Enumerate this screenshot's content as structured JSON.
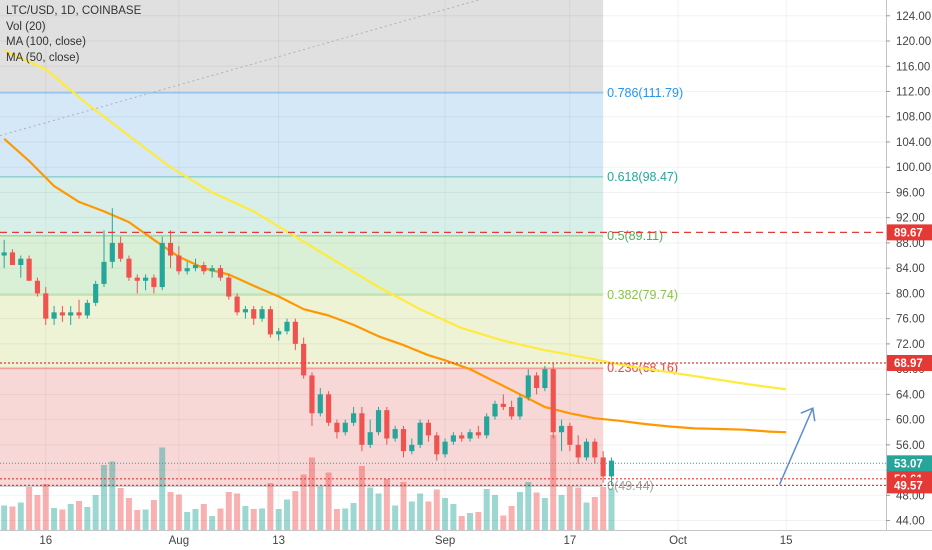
{
  "title": "LTC/USD, 1D, COINBASE",
  "indicators": [
    "Vol (20)",
    "MA (100, close)",
    "MA (50, close)"
  ],
  "colors": {
    "up": "#26a69a",
    "down": "#ef5350",
    "ma50": "#ff9800",
    "ma100": "#ffeb3b",
    "fib_line": "#42a5f5",
    "fib_0786": "#2196f3",
    "fib_0618": "#26a69a",
    "fib_05": "#4caf50",
    "fib_0382": "#8bc34a",
    "fib_0236": "#f44336",
    "level": "#e53935",
    "last_price": "#26a69a",
    "arrow": "#5b8dd6"
  },
  "chart_data": {
    "type": "candlestick",
    "title": "LTC/USD, 1D, COINBASE",
    "symbol": "LTC/USD",
    "interval": "1D",
    "exchange": "COINBASE",
    "y_axis": {
      "range": [
        42.5,
        126.5
      ],
      "ticks": [
        "44.00",
        "48.00",
        "52.00",
        "56.00",
        "60.00",
        "64.00",
        "68.00",
        "72.00",
        "76.00",
        "80.00",
        "84.00",
        "88.00",
        "92.00",
        "96.00",
        "100.00",
        "104.00",
        "108.00",
        "112.00",
        "116.00",
        "120.00",
        "124.00"
      ]
    },
    "x_axis": {
      "ticks": [
        {
          "label": "16",
          "index": 5
        },
        {
          "label": "Aug",
          "index": 21
        },
        {
          "label": "13",
          "index": 33
        },
        {
          "label": "Sep",
          "index": 53
        },
        {
          "label": "17",
          "index": 68
        },
        {
          "label": "Oct",
          "index": 81
        },
        {
          "label": "15",
          "index": 94
        }
      ],
      "range": [
        -0.5,
        106
      ]
    },
    "fibonacci": {
      "end_index": 72,
      "levels": [
        {
          "label": "0.786(111.79)",
          "value": 111.79,
          "color": "#2196f3"
        },
        {
          "label": "0.618(98.47)",
          "value": 98.47,
          "color": "#26a69a"
        },
        {
          "label": "0.5(89.11)",
          "value": 89.11,
          "color": "#4caf50"
        },
        {
          "label": "0.382(79.74)",
          "value": 79.74,
          "color": "#8bc34a"
        },
        {
          "label": "0.236(68.16)",
          "value": 68.16,
          "color": "#f44336"
        },
        {
          "label": "0(49.44)",
          "value": 49.44,
          "color": "#9e9e9e"
        }
      ],
      "bands": [
        {
          "from": 111.79,
          "to": 126.5,
          "color": "#e0e0e0"
        },
        {
          "from": 98.47,
          "to": 111.79,
          "color": "#d4e8f7"
        },
        {
          "from": 89.11,
          "to": 98.47,
          "color": "#d8efe9"
        },
        {
          "from": 79.74,
          "to": 89.11,
          "color": "#d9f0d7"
        },
        {
          "from": 68.16,
          "to": 79.74,
          "color": "#eef3d6"
        },
        {
          "from": 49.44,
          "to": 68.16,
          "color": "#f8d7d7"
        }
      ]
    },
    "price_levels": [
      {
        "label": "89.67",
        "value": 89.67,
        "style": "dashed"
      },
      {
        "label": "68.97",
        "value": 68.97,
        "style": "dotted"
      },
      {
        "label": "50.61",
        "value": 50.61,
        "style": "dotted"
      },
      {
        "label": "49.57",
        "value": 49.57,
        "style": "dotted"
      }
    ],
    "last_price": {
      "label": "53.07",
      "value": 53.07
    },
    "ma100": [
      [
        0,
        118.5
      ],
      [
        5,
        115.5
      ],
      [
        10,
        110
      ],
      [
        15,
        105
      ],
      [
        20,
        100
      ],
      [
        25,
        96
      ],
      [
        30,
        93
      ],
      [
        35,
        89
      ],
      [
        40,
        85
      ],
      [
        45,
        81
      ],
      [
        50,
        77.5
      ],
      [
        55,
        74.5
      ],
      [
        60,
        72.5
      ],
      [
        65,
        71
      ],
      [
        70,
        69.8
      ],
      [
        75,
        68.5
      ],
      [
        80,
        67.5
      ],
      [
        85,
        66.5
      ],
      [
        90,
        65.5
      ],
      [
        94,
        64.8
      ]
    ],
    "ma50": [
      [
        0,
        104.5
      ],
      [
        3,
        101
      ],
      [
        6,
        97
      ],
      [
        9,
        94.5
      ],
      [
        12,
        93
      ],
      [
        15,
        91.3
      ],
      [
        18,
        88.5
      ],
      [
        21,
        85.8
      ],
      [
        24,
        84
      ],
      [
        27,
        83
      ],
      [
        30,
        81.2
      ],
      [
        33,
        79.5
      ],
      [
        36,
        77.5
      ],
      [
        39,
        76.5
      ],
      [
        42,
        75
      ],
      [
        45,
        73.2
      ],
      [
        48,
        71.8
      ],
      [
        51,
        70.2
      ],
      [
        53,
        69.4
      ],
      [
        56,
        68
      ],
      [
        59,
        66
      ],
      [
        62,
        64
      ],
      [
        65,
        62
      ],
      [
        68,
        61
      ],
      [
        71,
        60.2
      ],
      [
        74,
        59.8
      ],
      [
        77,
        59.3
      ],
      [
        80,
        58.9
      ],
      [
        83,
        58.6
      ],
      [
        86,
        58.5
      ],
      [
        89,
        58.4
      ],
      [
        92,
        58.1
      ],
      [
        94,
        58
      ]
    ],
    "candles": [
      {
        "o": 86,
        "h": 88.5,
        "l": 84,
        "c": 86.5
      },
      {
        "o": 86.5,
        "h": 87,
        "l": 84.5,
        "c": 84.5
      },
      {
        "o": 84.5,
        "h": 86,
        "l": 82.5,
        "c": 85.5
      },
      {
        "o": 85.5,
        "h": 86,
        "l": 82,
        "c": 82
      },
      {
        "o": 82,
        "h": 82.5,
        "l": 79.5,
        "c": 80
      },
      {
        "o": 80,
        "h": 81,
        "l": 75,
        "c": 76
      },
      {
        "o": 76,
        "h": 78,
        "l": 75,
        "c": 77
      },
      {
        "o": 77,
        "h": 78,
        "l": 75.5,
        "c": 76.5
      },
      {
        "o": 76.5,
        "h": 78,
        "l": 75,
        "c": 77
      },
      {
        "o": 77,
        "h": 79,
        "l": 76,
        "c": 76.5
      },
      {
        "o": 76.5,
        "h": 79,
        "l": 76,
        "c": 78.5
      },
      {
        "o": 78.5,
        "h": 82,
        "l": 78,
        "c": 81.5
      },
      {
        "o": 81.5,
        "h": 90,
        "l": 81,
        "c": 85
      },
      {
        "o": 85,
        "h": 93.5,
        "l": 84,
        "c": 88
      },
      {
        "o": 88,
        "h": 89,
        "l": 85,
        "c": 85.5
      },
      {
        "o": 85.5,
        "h": 86,
        "l": 82,
        "c": 82.5
      },
      {
        "o": 82.5,
        "h": 83,
        "l": 80,
        "c": 82
      },
      {
        "o": 82,
        "h": 83,
        "l": 80.5,
        "c": 82.5
      },
      {
        "o": 82.5,
        "h": 83,
        "l": 80,
        "c": 81
      },
      {
        "o": 81,
        "h": 89,
        "l": 80.5,
        "c": 88
      },
      {
        "o": 88,
        "h": 90,
        "l": 84,
        "c": 86
      },
      {
        "o": 86,
        "h": 87.5,
        "l": 83,
        "c": 83.5
      },
      {
        "o": 83.5,
        "h": 85,
        "l": 83,
        "c": 84
      },
      {
        "o": 84,
        "h": 85.5,
        "l": 83.5,
        "c": 84.5
      },
      {
        "o": 84.5,
        "h": 85,
        "l": 83,
        "c": 83.5
      },
      {
        "o": 83.5,
        "h": 84.5,
        "l": 82.5,
        "c": 84
      },
      {
        "o": 84,
        "h": 84.5,
        "l": 82,
        "c": 82.5
      },
      {
        "o": 82.5,
        "h": 83,
        "l": 79,
        "c": 79.5
      },
      {
        "o": 79.5,
        "h": 80,
        "l": 76.5,
        "c": 77
      },
      {
        "o": 77,
        "h": 78,
        "l": 76,
        "c": 77.5
      },
      {
        "o": 77.5,
        "h": 78,
        "l": 75,
        "c": 76
      },
      {
        "o": 76,
        "h": 78,
        "l": 75.5,
        "c": 77.5
      },
      {
        "o": 77.5,
        "h": 78,
        "l": 73,
        "c": 73.5
      },
      {
        "o": 73.5,
        "h": 74.5,
        "l": 72.5,
        "c": 74
      },
      {
        "o": 74,
        "h": 76,
        "l": 73.5,
        "c": 75.5
      },
      {
        "o": 75.5,
        "h": 76,
        "l": 71,
        "c": 72
      },
      {
        "o": 72,
        "h": 73,
        "l": 66.5,
        "c": 67
      },
      {
        "o": 67,
        "h": 67.5,
        "l": 59,
        "c": 61
      },
      {
        "o": 61,
        "h": 65,
        "l": 60.5,
        "c": 64
      },
      {
        "o": 64,
        "h": 64.5,
        "l": 59,
        "c": 59.5
      },
      {
        "o": 59.5,
        "h": 60,
        "l": 57,
        "c": 58
      },
      {
        "o": 58,
        "h": 60,
        "l": 57.5,
        "c": 59.5
      },
      {
        "o": 59.5,
        "h": 62,
        "l": 59,
        "c": 61
      },
      {
        "o": 61,
        "h": 62,
        "l": 55,
        "c": 56
      },
      {
        "o": 56,
        "h": 60,
        "l": 55.5,
        "c": 58
      },
      {
        "o": 58,
        "h": 62,
        "l": 57.5,
        "c": 61.5
      },
      {
        "o": 61.5,
        "h": 62,
        "l": 56,
        "c": 57
      },
      {
        "o": 57,
        "h": 59,
        "l": 56.5,
        "c": 58.5
      },
      {
        "o": 58.5,
        "h": 59,
        "l": 54,
        "c": 55
      },
      {
        "o": 55,
        "h": 57,
        "l": 54.5,
        "c": 56
      },
      {
        "o": 56,
        "h": 60,
        "l": 55.5,
        "c": 59.5
      },
      {
        "o": 59.5,
        "h": 60,
        "l": 56.5,
        "c": 57.5
      },
      {
        "o": 57.5,
        "h": 58,
        "l": 53.5,
        "c": 54.5
      },
      {
        "o": 54.5,
        "h": 57,
        "l": 54,
        "c": 56.5
      },
      {
        "o": 56.5,
        "h": 58,
        "l": 56,
        "c": 57.5
      },
      {
        "o": 57.5,
        "h": 58,
        "l": 56.5,
        "c": 57
      },
      {
        "o": 57,
        "h": 58.5,
        "l": 56.5,
        "c": 58
      },
      {
        "o": 58,
        "h": 59,
        "l": 57,
        "c": 57.5
      },
      {
        "o": 57.5,
        "h": 61,
        "l": 57,
        "c": 60.5
      },
      {
        "o": 60.5,
        "h": 63,
        "l": 60,
        "c": 62.5
      },
      {
        "o": 62.5,
        "h": 64,
        "l": 61.5,
        "c": 62
      },
      {
        "o": 62,
        "h": 63,
        "l": 60,
        "c": 60.5
      },
      {
        "o": 60.5,
        "h": 64,
        "l": 60,
        "c": 63.5
      },
      {
        "o": 63.5,
        "h": 68,
        "l": 63,
        "c": 67
      },
      {
        "o": 67,
        "h": 67.5,
        "l": 64,
        "c": 65
      },
      {
        "o": 65,
        "h": 68.5,
        "l": 64.5,
        "c": 68
      },
      {
        "o": 68,
        "h": 69,
        "l": 57,
        "c": 58
      },
      {
        "o": 58,
        "h": 60,
        "l": 55,
        "c": 59
      },
      {
        "o": 59,
        "h": 59.5,
        "l": 55,
        "c": 56
      },
      {
        "o": 56,
        "h": 57.5,
        "l": 53,
        "c": 54
      },
      {
        "o": 54,
        "h": 57,
        "l": 53.5,
        "c": 56.5
      },
      {
        "o": 56.5,
        "h": 57,
        "l": 53,
        "c": 54
      },
      {
        "o": 54,
        "h": 55,
        "l": 50,
        "c": 51
      },
      {
        "o": 51,
        "h": 54,
        "l": 49.5,
        "c": 53.5
      }
    ]
  }
}
